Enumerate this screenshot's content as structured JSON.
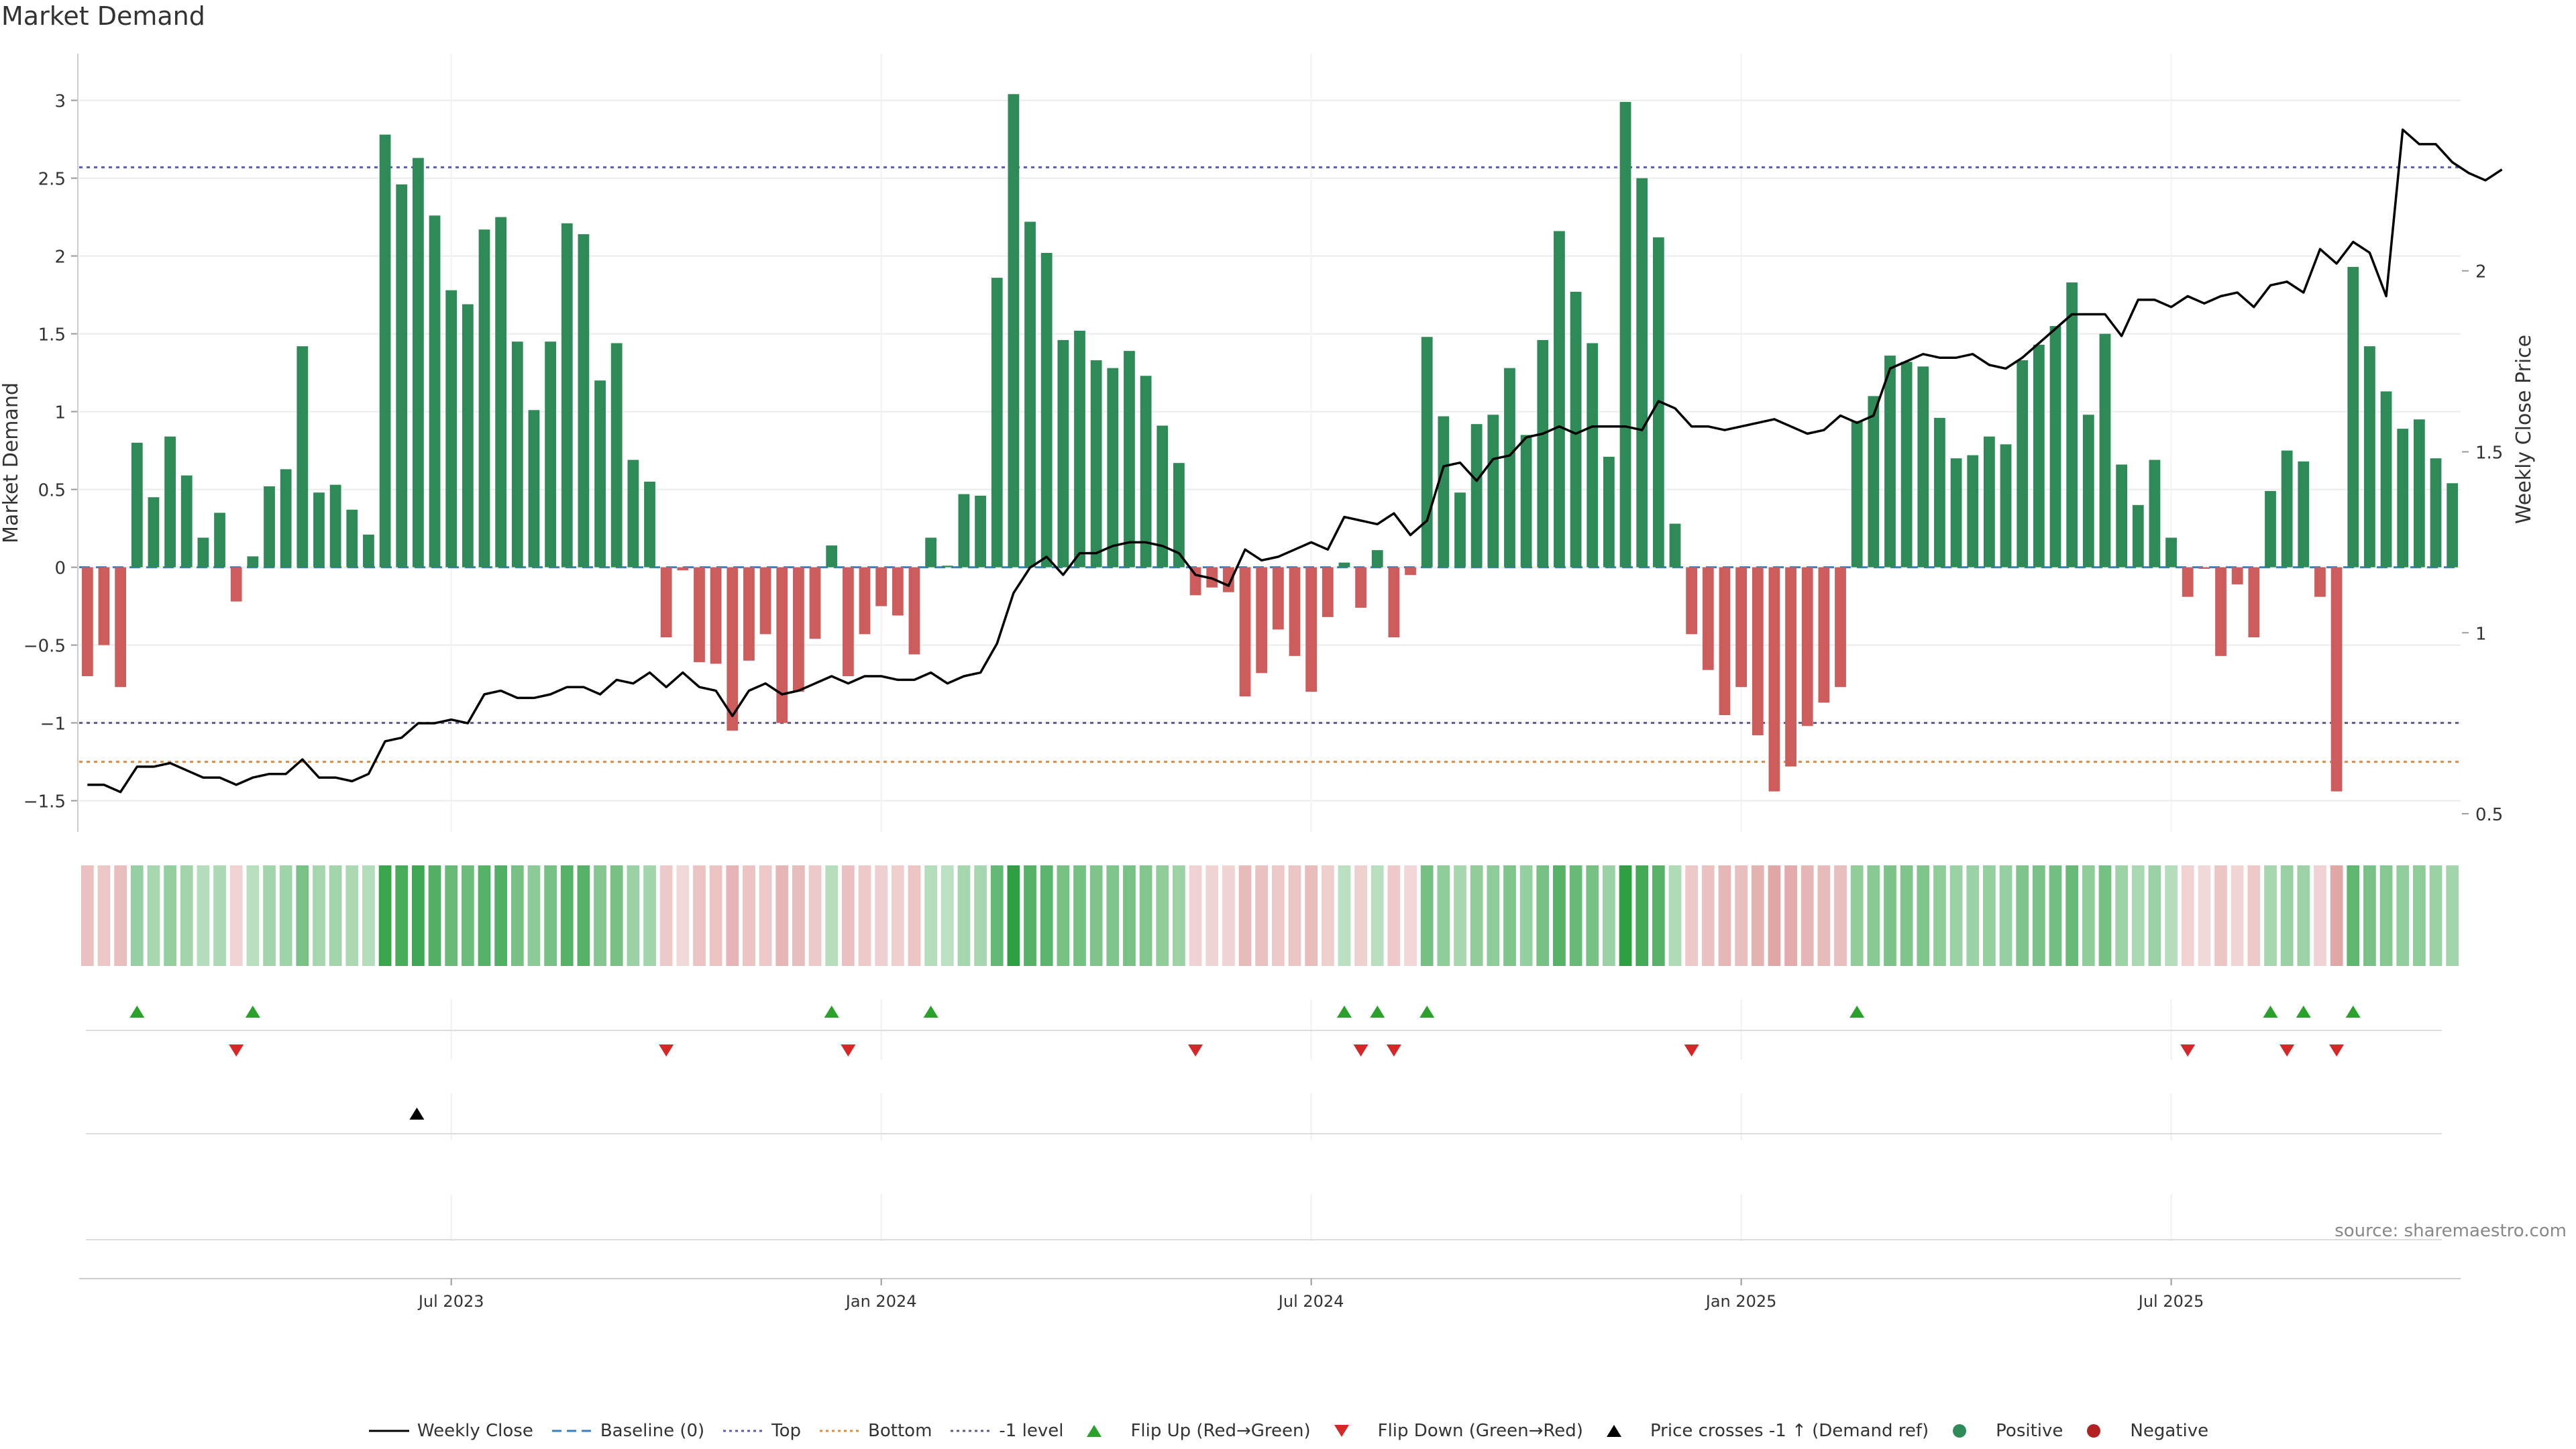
{
  "title": "Market Demand",
  "source": "source: sharemaestro.com",
  "chart_data": {
    "type": "bar",
    "title": "Market Demand",
    "ylabel": "Market Demand",
    "y2label": "Weekly Close Price",
    "ylim": [
      -1.7,
      3.3
    ],
    "y2lim": [
      0.45,
      2.6
    ],
    "yticks": [
      -1.5,
      -1,
      -0.5,
      0,
      0.5,
      1,
      1.5,
      2,
      2.5,
      3
    ],
    "yticklabels": [
      "−1.5",
      "−1",
      "−0.5",
      "0",
      "0.5",
      "1",
      "1.5",
      "2",
      "2.5",
      "3"
    ],
    "y2ticks": [
      0.5,
      1,
      1.5,
      2
    ],
    "y2ticklabels": [
      "0.5",
      "1",
      "1.5",
      "2"
    ],
    "x_tick_labels": [
      {
        "index": 22,
        "label": "Jul 2023"
      },
      {
        "index": 48,
        "label": "Jan 2024"
      },
      {
        "index": 74,
        "label": "Jul 2024"
      },
      {
        "index": 100,
        "label": "Jan 2025"
      },
      {
        "index": 126,
        "label": "Jul 2025"
      }
    ],
    "reference_lines": {
      "top": 2.57,
      "minus_one": -1.0,
      "bottom": -1.25,
      "baseline": 0
    },
    "colors": {
      "positive": "#2e8b57",
      "negative": "#cd5c5c",
      "close": "#000000",
      "top": "#5b5bb0",
      "bottom": "#e08a3c",
      "minus_one": "#5b5b8a",
      "baseline": "#3a7fc1",
      "flip_up": "#2ca02c",
      "flip_down": "#d62728"
    },
    "demand": [
      -0.7,
      -0.5,
      -0.77,
      0.8,
      0.45,
      0.84,
      0.59,
      0.19,
      0.35,
      -0.22,
      0.07,
      0.52,
      0.63,
      1.42,
      0.48,
      0.53,
      0.37,
      0.21,
      2.78,
      2.46,
      2.63,
      2.26,
      1.78,
      1.69,
      2.17,
      2.25,
      1.45,
      1.01,
      1.45,
      2.21,
      2.14,
      1.2,
      1.44,
      0.69,
      0.55,
      -0.45,
      -0.02,
      -0.61,
      -0.62,
      -1.05,
      -0.6,
      -0.43,
      -1.0,
      -0.8,
      -0.46,
      0.14,
      -0.7,
      -0.43,
      -0.25,
      -0.31,
      -0.56,
      0.19,
      0.01,
      0.47,
      0.46,
      1.86,
      3.04,
      2.22,
      2.02,
      1.46,
      1.52,
      1.33,
      1.28,
      1.39,
      1.23,
      0.91,
      0.67,
      -0.18,
      -0.13,
      -0.16,
      -0.83,
      -0.68,
      -0.4,
      -0.57,
      -0.8,
      -0.32,
      0.03,
      -0.26,
      0.11,
      -0.45,
      -0.05,
      1.48,
      0.97,
      0.48,
      0.92,
      0.98,
      1.28,
      0.85,
      1.46,
      2.16,
      1.77,
      1.44,
      0.71,
      2.99,
      2.5,
      2.12,
      0.28,
      -0.43,
      -0.66,
      -0.95,
      -0.77,
      -1.08,
      -1.44,
      -1.28,
      -1.02,
      -0.87,
      -0.77,
      0.94,
      1.1,
      1.36,
      1.32,
      1.29,
      0.96,
      0.7,
      0.72,
      0.84,
      0.79,
      1.33,
      1.43,
      1.55,
      1.83,
      0.98,
      1.5,
      0.66,
      0.4,
      0.69,
      0.19,
      -0.19,
      -0.01,
      -0.57,
      -0.11,
      -0.45,
      0.49,
      0.75,
      0.68,
      -0.19,
      -1.44,
      1.93,
      1.42,
      1.13,
      0.89,
      0.95,
      0.7,
      0.54
    ],
    "close": [
      0.58,
      0.58,
      0.56,
      0.63,
      0.63,
      0.64,
      0.62,
      0.6,
      0.6,
      0.58,
      0.6,
      0.61,
      0.61,
      0.65,
      0.6,
      0.6,
      0.59,
      0.61,
      0.7,
      0.71,
      0.75,
      0.75,
      0.76,
      0.75,
      0.83,
      0.84,
      0.82,
      0.82,
      0.83,
      0.85,
      0.85,
      0.83,
      0.87,
      0.86,
      0.89,
      0.85,
      0.89,
      0.85,
      0.84,
      0.77,
      0.84,
      0.86,
      0.83,
      0.84,
      0.86,
      0.88,
      0.86,
      0.88,
      0.88,
      0.87,
      0.87,
      0.89,
      0.86,
      0.88,
      0.89,
      0.97,
      1.11,
      1.18,
      1.21,
      1.16,
      1.22,
      1.22,
      1.24,
      1.25,
      1.25,
      1.24,
      1.22,
      1.16,
      1.15,
      1.13,
      1.23,
      1.2,
      1.21,
      1.23,
      1.25,
      1.23,
      1.32,
      1.31,
      1.3,
      1.33,
      1.27,
      1.31,
      1.46,
      1.47,
      1.42,
      1.48,
      1.49,
      1.54,
      1.55,
      1.57,
      1.55,
      1.57,
      1.57,
      1.57,
      1.56,
      1.64,
      1.62,
      1.57,
      1.57,
      1.56,
      1.57,
      1.58,
      1.59,
      1.57,
      1.55,
      1.56,
      1.6,
      1.58,
      1.6,
      1.73,
      1.75,
      1.77,
      1.76,
      1.76,
      1.77,
      1.74,
      1.73,
      1.76,
      1.8,
      1.84,
      1.88,
      1.88,
      1.88,
      1.82,
      1.92,
      1.92,
      1.9,
      1.93,
      1.91,
      1.93,
      1.94,
      1.9,
      1.96,
      1.97,
      1.94,
      2.06,
      2.02,
      2.08,
      2.05,
      1.93,
      2.39,
      2.35,
      2.35,
      2.3,
      2.27,
      2.25,
      2.28
    ],
    "flip_up_indices": [
      3,
      10,
      45,
      51,
      76,
      78,
      81,
      107,
      132,
      134,
      137
    ],
    "flip_down_indices": [
      9,
      35,
      46,
      67,
      77,
      79,
      97,
      127,
      133,
      136
    ],
    "price_cross_indices": [
      20
    ],
    "legend": [
      "Weekly Close",
      "Baseline (0)",
      "Top",
      "Bottom",
      "-1 level",
      "Flip Up (Red→Green)",
      "Flip Down (Green→Red)",
      "Price crosses -1 ↑ (Demand ref)",
      "Positive",
      "Negative"
    ]
  }
}
